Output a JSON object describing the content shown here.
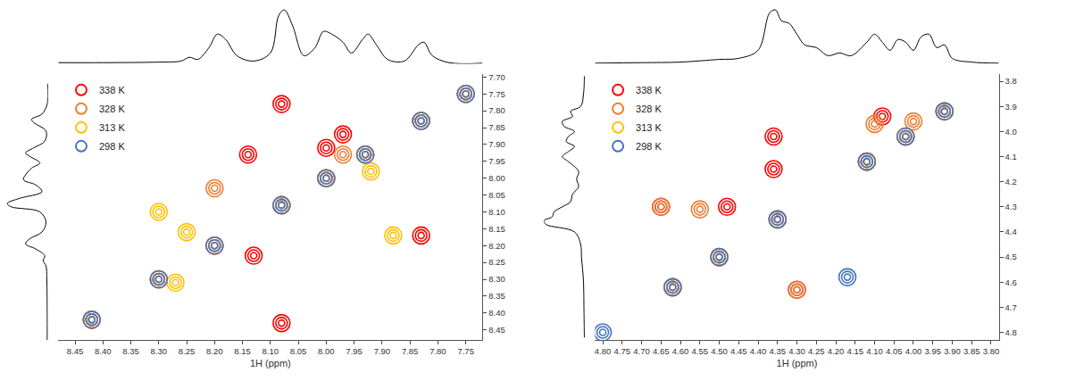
{
  "chart_data": [
    {
      "type": "scatter",
      "x_label": "1H (ppm)",
      "marker": "circle-open",
      "legend": "upper left",
      "xlim": [
        8.48,
        7.72
      ],
      "ylim": [
        8.48,
        7.69
      ],
      "xticks": [
        8.45,
        {
          "value": 8.4,
          "label": "8.40"
        },
        8.35,
        {
          "value": 8.3,
          "label": "8.30"
        },
        8.25,
        {
          "value": 8.2,
          "label": "8.20"
        },
        8.15,
        {
          "value": 8.1,
          "label": "8.10"
        },
        8.05,
        {
          "value": 8.0,
          "label": "8.00"
        },
        7.95,
        {
          "value": 7.9,
          "label": "7.90"
        },
        7.85,
        {
          "value": 7.8,
          "label": "7.80"
        },
        7.75
      ],
      "yticks": [
        {
          "value": 7.7,
          "label": "7.70"
        },
        7.75,
        {
          "value": 7.8,
          "label": "7.80"
        },
        7.85,
        {
          "value": 7.9,
          "label": "7.90"
        },
        7.95,
        {
          "value": 8.0,
          "label": "8.00"
        },
        8.05,
        {
          "value": 8.1,
          "label": "8.10"
        },
        8.15,
        {
          "value": 8.2,
          "label": "8.20"
        },
        8.25,
        {
          "value": 8.3,
          "label": "8.30"
        },
        8.35,
        {
          "value": 8.4,
          "label": "8.40"
        },
        8.45
      ],
      "series": [
        {
          "name": "338 K",
          "color": "#ff0000",
          "x": [
            8.42,
            8.3,
            8.2,
            8.08,
            8.0,
            7.93,
            7.83,
            7.75,
            8.08,
            7.83,
            8.08,
            8.14,
            8.0,
            8.13,
            7.97
          ],
          "values": [
            8.42,
            8.3,
            8.2,
            8.08,
            8.0,
            7.93,
            7.83,
            7.75,
            7.78,
            8.17,
            8.43,
            7.93,
            7.91,
            8.23,
            7.87
          ]
        },
        {
          "name": "328 K",
          "color": "#ed7d31",
          "x": [
            8.42,
            8.3,
            8.2,
            8.08,
            8.0,
            7.93,
            7.83,
            7.75,
            8.2,
            7.97
          ],
          "values": [
            8.42,
            8.3,
            8.2,
            8.08,
            8.0,
            7.93,
            7.83,
            7.75,
            8.03,
            7.93
          ]
        },
        {
          "name": "313 K",
          "color": "#ffc000",
          "x": [
            8.42,
            8.3,
            8.2,
            8.08,
            8.0,
            7.93,
            7.83,
            7.75,
            8.3,
            8.25,
            7.92,
            7.88,
            8.27
          ],
          "values": [
            8.42,
            8.3,
            8.2,
            8.08,
            8.0,
            7.93,
            7.83,
            7.75,
            8.1,
            8.16,
            7.98,
            8.17,
            8.31
          ]
        },
        {
          "name": "298 K",
          "color": "#4472c4",
          "x": [
            8.42,
            8.3,
            8.2,
            8.08,
            8.0,
            7.93,
            7.83,
            7.75
          ],
          "values": [
            8.42,
            8.3,
            8.2,
            8.08,
            8.0,
            7.93,
            7.83,
            7.75
          ]
        }
      ],
      "projection": {
        "ppm": [
          8.48,
          8.4,
          8.3,
          8.26,
          8.245,
          8.23,
          8.21,
          8.195,
          8.18,
          8.16,
          8.13,
          8.1,
          8.085,
          8.075,
          8.06,
          8.04,
          8.02,
          8.005,
          7.99,
          7.97,
          7.955,
          7.935,
          7.925,
          7.91,
          7.89,
          7.86,
          7.835,
          7.825,
          7.81,
          7.78,
          7.72
        ],
        "values": [
          0.02,
          0.02,
          0.03,
          0.05,
          0.12,
          0.08,
          0.3,
          0.55,
          0.45,
          0.15,
          0.05,
          0.2,
          0.9,
          1.0,
          0.7,
          0.15,
          0.3,
          0.6,
          0.55,
          0.4,
          0.2,
          0.45,
          0.55,
          0.35,
          0.08,
          0.05,
          0.35,
          0.4,
          0.15,
          0.02,
          0.01
        ]
      }
    },
    {
      "type": "scatter",
      "x_label": "1H (ppm)",
      "marker": "circle-open",
      "legend": "upper left",
      "xlim": [
        4.82,
        3.78
      ],
      "ylim": [
        4.83,
        3.77
      ],
      "xticks": [
        {
          "value": 4.8,
          "label": "4.80"
        },
        4.75,
        {
          "value": 4.7,
          "label": "4.70"
        },
        4.65,
        {
          "value": 4.6,
          "label": "4.60"
        },
        4.55,
        {
          "value": 4.5,
          "label": "4.50"
        },
        4.45,
        {
          "value": 4.4,
          "label": "4.40"
        },
        4.35,
        {
          "value": 4.3,
          "label": "4.30"
        },
        4.25,
        {
          "value": 4.2,
          "label": "4.20"
        },
        4.15,
        {
          "value": 4.1,
          "label": "4.10"
        },
        4.05,
        {
          "value": 4.0,
          "label": "4.00"
        },
        3.95,
        {
          "value": 3.9,
          "label": "3.90"
        },
        3.85,
        {
          "value": 3.8,
          "label": "3.80"
        }
      ],
      "yticks": [
        3.8,
        3.9,
        {
          "value": 4.0,
          "label": "4.0"
        },
        4.1,
        4.2,
        4.3,
        4.4,
        4.5,
        4.6,
        4.7,
        4.8
      ],
      "series": [
        {
          "name": "338 K",
          "color": "#ff0000",
          "x": [
            4.62,
            4.5,
            4.35,
            4.12,
            4.02,
            3.92,
            4.65,
            4.48,
            4.36,
            4.36,
            4.3,
            4.08
          ],
          "values": [
            4.62,
            4.5,
            4.35,
            4.12,
            4.02,
            3.92,
            4.3,
            4.3,
            4.02,
            4.15,
            4.63,
            3.94
          ]
        },
        {
          "name": "328 K",
          "color": "#ed7d31",
          "x": [
            4.62,
            4.5,
            4.35,
            4.12,
            4.02,
            3.92,
            4.65,
            4.55,
            4.3,
            4.1,
            4.0
          ],
          "values": [
            4.62,
            4.5,
            4.35,
            4.12,
            4.02,
            3.92,
            4.3,
            4.31,
            4.63,
            3.97,
            3.96
          ]
        },
        {
          "name": "313 K",
          "color": "#ffc000",
          "x": [
            4.62,
            4.5,
            4.35,
            4.12,
            4.02,
            3.92
          ],
          "values": [
            4.62,
            4.5,
            4.35,
            4.12,
            4.02,
            3.92
          ]
        },
        {
          "name": "298 K",
          "color": "#4472c4",
          "x": [
            4.8,
            4.62,
            4.5,
            4.35,
            4.12,
            4.02,
            3.92,
            4.17
          ],
          "values": [
            4.8,
            4.62,
            4.5,
            4.35,
            4.12,
            4.02,
            3.92,
            4.58
          ]
        }
      ],
      "projection": {
        "ppm": [
          4.82,
          4.7,
          4.6,
          4.5,
          4.45,
          4.4,
          4.37,
          4.355,
          4.34,
          4.32,
          4.3,
          4.28,
          4.25,
          4.22,
          4.19,
          4.16,
          4.12,
          4.1,
          4.08,
          4.06,
          4.04,
          4.02,
          4.0,
          3.98,
          3.96,
          3.94,
          3.92,
          3.9,
          3.85,
          3.78
        ],
        "values": [
          0.01,
          0.02,
          0.03,
          0.08,
          0.1,
          0.25,
          0.95,
          1.0,
          0.8,
          0.75,
          0.55,
          0.35,
          0.3,
          0.15,
          0.2,
          0.15,
          0.4,
          0.55,
          0.4,
          0.25,
          0.45,
          0.4,
          0.25,
          0.5,
          0.55,
          0.3,
          0.35,
          0.1,
          0.03,
          0.01
        ]
      }
    }
  ]
}
